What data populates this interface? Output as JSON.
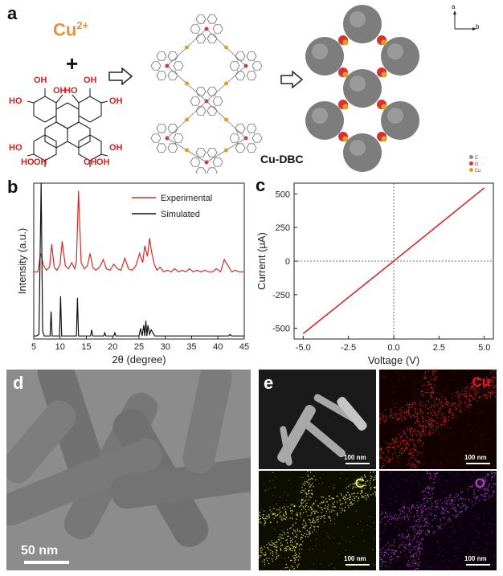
{
  "panels": {
    "a": {
      "letter": "a",
      "ion": "Cu",
      "ion_charge": "2+",
      "plus": "+",
      "ligand_oh": [
        "OH",
        "OH",
        "OH",
        "OH",
        "OH",
        "OH",
        "OH",
        "OH"
      ],
      "ligand_ho": [
        "HO",
        "HO",
        "HO",
        "HO"
      ],
      "product_label": "Cu-DBC",
      "axes_a": "a",
      "axes_b": "b",
      "legend_atoms": [
        "C",
        "O",
        "Cu"
      ],
      "colors": {
        "ion": "#e8903a",
        "hydroxyl": "#d62020",
        "framework_gray": "#7d7d7d",
        "oxygen": "#d93030",
        "copper": "#e0a020"
      }
    },
    "b": {
      "letter": "b"
    },
    "c": {
      "letter": "c"
    },
    "d": {
      "letter": "d",
      "scale_bar": "50 nm"
    },
    "e": {
      "letter": "e",
      "tiles": [
        {
          "label": "",
          "scale": "100 nm",
          "color": "#bdbdbd"
        },
        {
          "label": "Cu",
          "scale": "100 nm",
          "color": "#e02020"
        },
        {
          "label": "C",
          "scale": "100 nm",
          "color": "#d8d84a"
        },
        {
          "label": "O",
          "scale": "100 nm",
          "color": "#b040c8"
        }
      ]
    }
  },
  "chart_data": [
    {
      "type": "line",
      "panel": "b",
      "xlabel": "2θ (degree)",
      "ylabel": "Intensity (a.u.)",
      "xlim": [
        5,
        45
      ],
      "xticks": [
        "5",
        "10",
        "15",
        "20",
        "25",
        "30",
        "35",
        "40",
        "45"
      ],
      "legend": "top-right",
      "series": [
        {
          "name": "Experimental",
          "color": "#d42a2a",
          "x": [
            5,
            5.8,
            6.3,
            6.9,
            7.4,
            8.0,
            8.4,
            8.9,
            9.4,
            10.0,
            10.4,
            11.0,
            11.6,
            12.2,
            12.8,
            13.1,
            13.5,
            14.0,
            14.6,
            15.2,
            15.7,
            16.2,
            16.8,
            17.5,
            18.2,
            18.8,
            19.5,
            20.2,
            20.9,
            21.6,
            22.3,
            23.0,
            23.7,
            24.4,
            25.1,
            25.7,
            26.1,
            26.6,
            27.0,
            27.4,
            27.9,
            28.4,
            29.0,
            29.7,
            30.4,
            31.1,
            31.8,
            32.5,
            33.2,
            33.9,
            34.6,
            35.3,
            36.0,
            36.8,
            37.5,
            38.2,
            39.0,
            39.7,
            40.5,
            41.2,
            41.9,
            42.6,
            43.3,
            44.0,
            45.0
          ],
          "y": [
            0.44,
            0.44,
            0.56,
            0.48,
            0.45,
            0.47,
            0.62,
            0.47,
            0.45,
            0.49,
            0.64,
            0.48,
            0.46,
            0.5,
            0.46,
            0.51,
            0.97,
            0.5,
            0.46,
            0.48,
            0.56,
            0.47,
            0.45,
            0.47,
            0.52,
            0.46,
            0.45,
            0.49,
            0.46,
            0.45,
            0.53,
            0.46,
            0.45,
            0.48,
            0.56,
            0.5,
            0.61,
            0.54,
            0.66,
            0.57,
            0.49,
            0.45,
            0.47,
            0.44,
            0.45,
            0.44,
            0.46,
            0.44,
            0.45,
            0.44,
            0.46,
            0.44,
            0.45,
            0.44,
            0.45,
            0.44,
            0.44,
            0.46,
            0.44,
            0.52,
            0.48,
            0.44,
            0.45,
            0.44,
            0.44
          ]
        },
        {
          "name": "Simulated",
          "color": "#111111",
          "x": [
            5,
            5.5,
            6.0,
            6.4,
            6.7,
            7.0,
            7.6,
            8.1,
            8.3,
            8.5,
            9.2,
            9.9,
            10.1,
            10.3,
            11.0,
            12.2,
            13.1,
            13.3,
            13.5,
            14.0,
            15.2,
            15.8,
            16.0,
            16.2,
            17.0,
            18.3,
            18.5,
            18.7,
            20.2,
            20.4,
            20.6,
            22.0,
            25.0,
            25.3,
            25.6,
            25.9,
            26.1,
            26.3,
            26.5,
            26.7,
            27.0,
            27.3,
            28.0,
            29.0,
            30.0,
            33.0,
            36.0,
            40.0,
            42.0,
            42.3,
            42.6,
            45.0
          ],
          "y": [
            0.02,
            0.02,
            0.03,
            1.02,
            0.05,
            0.02,
            0.02,
            0.02,
            0.18,
            0.02,
            0.02,
            0.02,
            0.28,
            0.02,
            0.02,
            0.02,
            0.02,
            0.27,
            0.02,
            0.02,
            0.02,
            0.02,
            0.06,
            0.02,
            0.02,
            0.02,
            0.04,
            0.02,
            0.02,
            0.04,
            0.02,
            0.02,
            0.02,
            0.07,
            0.02,
            0.09,
            0.02,
            0.12,
            0.02,
            0.09,
            0.03,
            0.06,
            0.02,
            0.02,
            0.02,
            0.02,
            0.02,
            0.02,
            0.02,
            0.03,
            0.02,
            0.02
          ]
        }
      ]
    },
    {
      "type": "line",
      "panel": "c",
      "xlabel": "Voltage (V)",
      "ylabel": "Current (μA)",
      "xlim": [
        -5.5,
        5.5
      ],
      "ylim": [
        -580,
        580
      ],
      "xticks": [
        "-5.0",
        "-2.5",
        "0.0",
        "2.5",
        "5.0"
      ],
      "yticks": [
        "-500",
        "-250",
        "0",
        "250",
        "500"
      ],
      "series": [
        {
          "color": "#d42a2a",
          "x": [
            -5.0,
            0.0,
            5.0
          ],
          "y": [
            -540,
            0,
            545
          ]
        }
      ]
    }
  ]
}
